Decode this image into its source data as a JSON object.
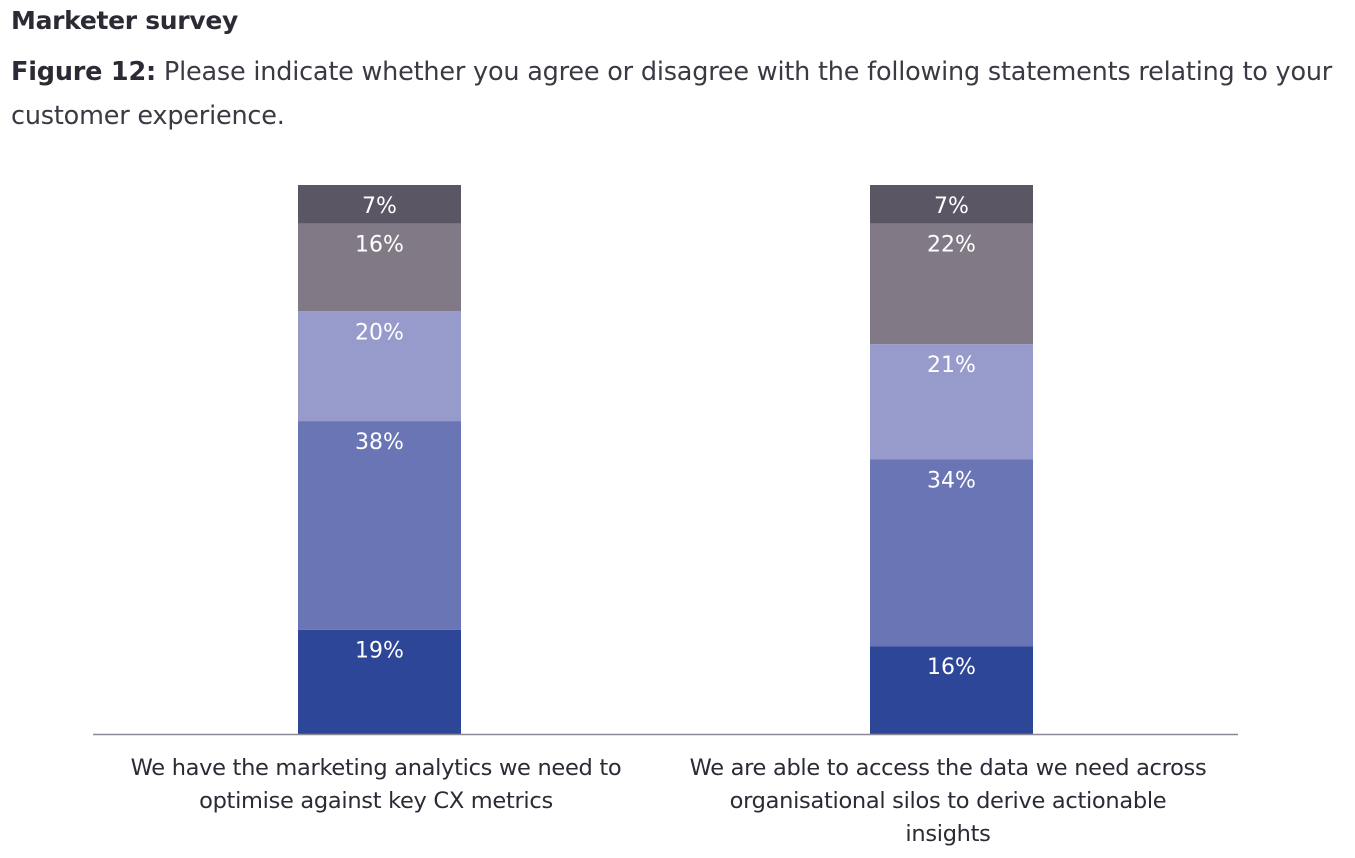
{
  "header": {
    "survey_label": "Marketer survey",
    "figure_number": "Figure 12:",
    "figure_text": " Please indicate whether you agree or disagree with the following statements relating to your customer experience."
  },
  "chart_data": {
    "type": "bar",
    "stacked": true,
    "orientation": "vertical",
    "title": "Figure 12: Please indicate whether you agree or disagree with the following statements relating to your customer experience.",
    "xlabel": "",
    "ylabel": "",
    "ylim": [
      0,
      100
    ],
    "grid": false,
    "legend": "none",
    "categories": [
      "We have the marketing analytics we need to optimise against key CX metrics",
      "We are able to access the data we need across organisational silos to derive actionable insights"
    ],
    "category_lines": [
      [
        "We have the marketing analytics we need to",
        "optimise against key CX metrics"
      ],
      [
        "We are able to access the data we need across",
        "organisational silos to derive actionable",
        "insights"
      ]
    ],
    "series": [
      {
        "name": "Segment 1 (bottom)",
        "color": "#2E4698",
        "values": [
          19,
          16
        ],
        "labels": [
          "19%",
          "16%"
        ]
      },
      {
        "name": "Segment 2",
        "color": "#6A75B5",
        "values": [
          38,
          34
        ],
        "labels": [
          "38%",
          "34%"
        ]
      },
      {
        "name": "Segment 3",
        "color": "#979BCC",
        "values": [
          20,
          21
        ],
        "labels": [
          "20%",
          "21%"
        ]
      },
      {
        "name": "Segment 4",
        "color": "#817A86",
        "values": [
          16,
          22
        ],
        "labels": [
          "16%",
          "22%"
        ]
      },
      {
        "name": "Segment 5 (top)",
        "color": "#5A5663",
        "values": [
          7,
          7
        ],
        "labels": [
          "7%",
          "7%"
        ]
      }
    ]
  }
}
